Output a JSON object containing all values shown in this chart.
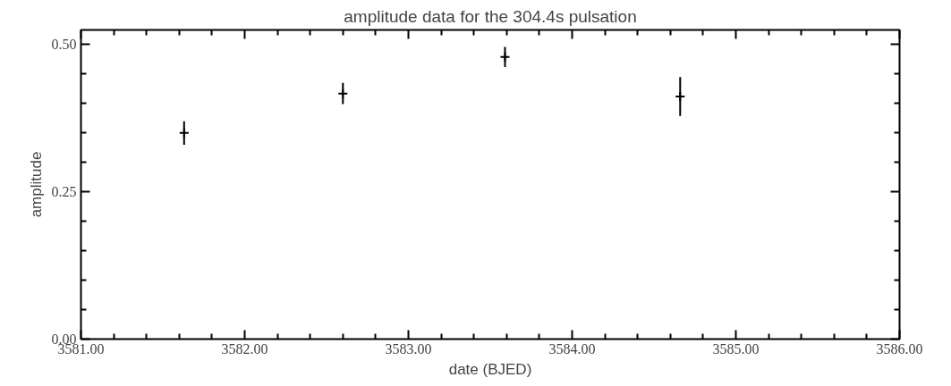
{
  "chart_data": {
    "type": "scatter",
    "title": "amplitude data for the 304.4s pulsation",
    "xlabel": "date (BJED)",
    "ylabel": "amplitude",
    "x": [
      3581.63,
      3582.6,
      3583.59,
      3584.66
    ],
    "values": [
      0.35,
      0.417,
      0.479,
      0.412
    ],
    "errors": [
      0.02,
      0.018,
      0.017,
      0.033
    ],
    "color": "#000000",
    "marker": "cross",
    "grid": false,
    "xlim": [
      3581,
      3586
    ],
    "ylim": [
      0,
      0.525
    ],
    "xticks": [
      {
        "value": 3581,
        "label": "3581.00"
      },
      {
        "value": 3582,
        "label": "3582.00"
      },
      {
        "value": 3583,
        "label": "3583.00"
      },
      {
        "value": 3584,
        "label": "3584.00"
      },
      {
        "value": 3585,
        "label": "3585.00"
      },
      {
        "value": 3586,
        "label": "3586.00"
      }
    ],
    "yticks": [
      {
        "value": 0,
        "label": "0.00"
      },
      {
        "value": 0.25,
        "label": "0.25"
      },
      {
        "value": 0.5,
        "label": "0.50"
      }
    ]
  }
}
